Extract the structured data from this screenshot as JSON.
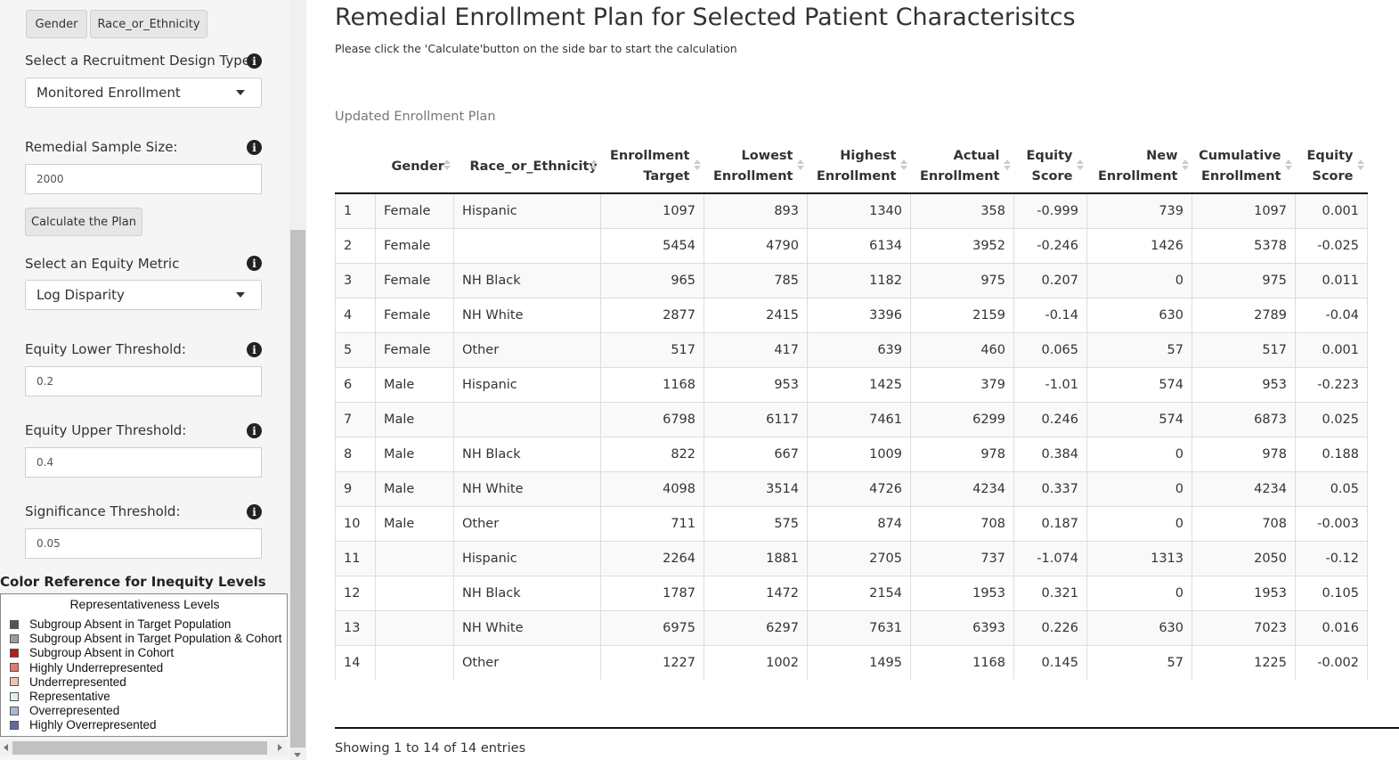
{
  "sidebar": {
    "group_buttons": [
      "Gender",
      "Race_or_Ethnicity"
    ],
    "design_type": {
      "label": "Select a Recruitment Design Type",
      "value": "Monitored Enrollment"
    },
    "sample_size": {
      "label": "Remedial Sample Size:",
      "value": "2000"
    },
    "calculate_label": "Calculate the Plan",
    "equity_metric": {
      "label": "Select an Equity Metric",
      "value": "Log Disparity"
    },
    "lower_threshold": {
      "label": "Equity Lower Threshold:",
      "value": "0.2"
    },
    "upper_threshold": {
      "label": "Equity Upper Threshold:",
      "value": "0.4"
    },
    "significance": {
      "label": "Significance Threshold:",
      "value": "0.05"
    },
    "info_icon_glyph": "i"
  },
  "legend": {
    "heading": "Color Reference for Inequity Levels",
    "title": "Representativeness Levels",
    "items": [
      {
        "label": "Subgroup Absent in Target Population",
        "color": "#555555"
      },
      {
        "label": "Subgroup Absent in Target Population & Cohort",
        "color": "#9e9e9e"
      },
      {
        "label": "Subgroup Absent in Cohort",
        "color": "#b71c1c"
      },
      {
        "label": "Highly Underrepresented",
        "color": "#e07a6a"
      },
      {
        "label": "Underrepresented",
        "color": "#f3c0b0"
      },
      {
        "label": "Representative",
        "color": "#ddeef2"
      },
      {
        "label": "Overrepresented",
        "color": "#a8b8d8"
      },
      {
        "label": "Highly Overrepresented",
        "color": "#5a6aa8"
      }
    ]
  },
  "main": {
    "title": "Remedial Enrollment Plan for Selected Patient Characterisitcs",
    "subtitle": "Please click the 'Calculate'button on the side bar to start the calculation",
    "table_caption": "Updated Enrollment Plan",
    "table_info": "Showing 1 to 14 of 14 entries"
  },
  "table": {
    "headers": [
      {
        "l1": "",
        "l2": ""
      },
      {
        "l1": "",
        "l2": "Gender"
      },
      {
        "l1": "",
        "l2": "Race_or_Ethnicity"
      },
      {
        "l1": "Enrollment",
        "l2": "Target"
      },
      {
        "l1": "Lowest",
        "l2": "Enrollment"
      },
      {
        "l1": "Highest",
        "l2": "Enrollment"
      },
      {
        "l1": "Actual",
        "l2": "Enrollment"
      },
      {
        "l1": "Equity",
        "l2": "Score"
      },
      {
        "l1": "New",
        "l2": "Enrollment"
      },
      {
        "l1": "Cumulative",
        "l2": "Enrollment"
      },
      {
        "l1": "Equity",
        "l2": "Score"
      }
    ],
    "rows": [
      [
        "1",
        "Female",
        "Hispanic",
        "1097",
        "893",
        "1340",
        "358",
        "-0.999",
        "739",
        "1097",
        "0.001"
      ],
      [
        "2",
        "Female",
        "",
        "5454",
        "4790",
        "6134",
        "3952",
        "-0.246",
        "1426",
        "5378",
        "-0.025"
      ],
      [
        "3",
        "Female",
        "NH Black",
        "965",
        "785",
        "1182",
        "975",
        "0.207",
        "0",
        "975",
        "0.011"
      ],
      [
        "4",
        "Female",
        "NH White",
        "2877",
        "2415",
        "3396",
        "2159",
        "-0.14",
        "630",
        "2789",
        "-0.04"
      ],
      [
        "5",
        "Female",
        "Other",
        "517",
        "417",
        "639",
        "460",
        "0.065",
        "57",
        "517",
        "0.001"
      ],
      [
        "6",
        "Male",
        "Hispanic",
        "1168",
        "953",
        "1425",
        "379",
        "-1.01",
        "574",
        "953",
        "-0.223"
      ],
      [
        "7",
        "Male",
        "",
        "6798",
        "6117",
        "7461",
        "6299",
        "0.246",
        "574",
        "6873",
        "0.025"
      ],
      [
        "8",
        "Male",
        "NH Black",
        "822",
        "667",
        "1009",
        "978",
        "0.384",
        "0",
        "978",
        "0.188"
      ],
      [
        "9",
        "Male",
        "NH White",
        "4098",
        "3514",
        "4726",
        "4234",
        "0.337",
        "0",
        "4234",
        "0.05"
      ],
      [
        "10",
        "Male",
        "Other",
        "711",
        "575",
        "874",
        "708",
        "0.187",
        "0",
        "708",
        "-0.003"
      ],
      [
        "11",
        "",
        "Hispanic",
        "2264",
        "1881",
        "2705",
        "737",
        "-1.074",
        "1313",
        "2050",
        "-0.12"
      ],
      [
        "12",
        "",
        "NH Black",
        "1787",
        "1472",
        "2154",
        "1953",
        "0.321",
        "0",
        "1953",
        "0.105"
      ],
      [
        "13",
        "",
        "NH White",
        "6975",
        "6297",
        "7631",
        "6393",
        "0.226",
        "630",
        "7023",
        "0.016"
      ],
      [
        "14",
        "",
        "Other",
        "1227",
        "1002",
        "1495",
        "1168",
        "0.145",
        "57",
        "1225",
        "-0.002"
      ]
    ]
  }
}
